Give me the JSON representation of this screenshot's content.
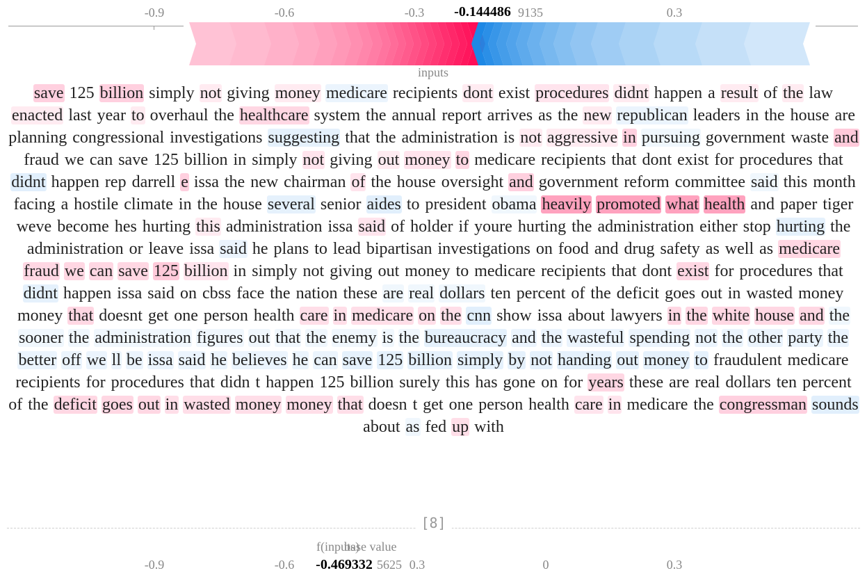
{
  "force_plot": {
    "ticks": [
      {
        "label": "-0.9"
      },
      {
        "label": "-0.6"
      },
      {
        "label": "-0.3"
      },
      {
        "label": "0.3"
      }
    ],
    "output_value": "-0.144486",
    "output_tail": "9135",
    "inputs_label": "inputs",
    "colors": {
      "positive": "#ff0d57",
      "negative": "#1e88e5"
    }
  },
  "tokens": [
    {
      "t": "save",
      "w": 0.25
    },
    {
      "t": "125",
      "w": 0
    },
    {
      "t": "billion",
      "w": 0.25
    },
    {
      "t": "simply",
      "w": 0
    },
    {
      "t": "not",
      "w": 0.05
    },
    {
      "t": "giving",
      "w": 0
    },
    {
      "t": "money",
      "w": 0.05
    },
    {
      "t": "medicare",
      "w": -0.1
    },
    {
      "t": "recipients",
      "w": 0
    },
    {
      "t": "dont",
      "w": 0.05
    },
    {
      "t": "exist",
      "w": 0
    },
    {
      "t": "procedures",
      "w": 0.1
    },
    {
      "t": "didnt",
      "w": 0.05
    },
    {
      "t": "happen",
      "w": 0
    },
    {
      "t": "a",
      "w": 0
    },
    {
      "t": "result",
      "w": 0.05
    },
    {
      "t": "of",
      "w": 0
    },
    {
      "t": "the",
      "w": 0.05
    },
    {
      "t": "law",
      "w": 0
    },
    {
      "t": "enacted",
      "w": 0.05
    },
    {
      "t": "last",
      "w": 0
    },
    {
      "t": "year",
      "w": 0
    },
    {
      "t": "to",
      "w": 0.05
    },
    {
      "t": "overhaul",
      "w": 0
    },
    {
      "t": "the",
      "w": 0
    },
    {
      "t": "healthcare",
      "w": 0.2
    },
    {
      "t": "system",
      "w": 0
    },
    {
      "t": "the",
      "w": 0
    },
    {
      "t": "annual",
      "w": 0
    },
    {
      "t": "report",
      "w": 0
    },
    {
      "t": "arrives",
      "w": 0
    },
    {
      "t": "as",
      "w": 0
    },
    {
      "t": "the",
      "w": 0
    },
    {
      "t": "new",
      "w": 0.05
    },
    {
      "t": "republican",
      "w": -0.1
    },
    {
      "t": "leaders",
      "w": 0
    },
    {
      "t": "in",
      "w": 0
    },
    {
      "t": "the",
      "w": 0
    },
    {
      "t": "house",
      "w": 0
    },
    {
      "t": "are",
      "w": 0
    },
    {
      "t": "planning",
      "w": 0
    },
    {
      "t": "congressional",
      "w": 0
    },
    {
      "t": "investigations",
      "w": 0
    },
    {
      "t": "suggesting",
      "w": -0.15
    },
    {
      "t": "that",
      "w": 0
    },
    {
      "t": "the",
      "w": 0
    },
    {
      "t": "administration",
      "w": 0
    },
    {
      "t": "is",
      "w": 0
    },
    {
      "t": "not",
      "w": 0.05
    },
    {
      "t": "aggressive",
      "w": 0.05
    },
    {
      "t": "in",
      "w": 0.25
    },
    {
      "t": "pursuing",
      "w": -0.05
    },
    {
      "t": "government",
      "w": 0
    },
    {
      "t": "waste",
      "w": 0
    },
    {
      "t": "and",
      "w": 0.3
    },
    {
      "t": "fraud",
      "w": 0
    },
    {
      "t": "we",
      "w": 0
    },
    {
      "t": "can",
      "w": 0
    },
    {
      "t": "save",
      "w": 0
    },
    {
      "t": "125",
      "w": 0
    },
    {
      "t": "billion",
      "w": 0
    },
    {
      "t": "in",
      "w": 0
    },
    {
      "t": "simply",
      "w": 0
    },
    {
      "t": "not",
      "w": 0.1
    },
    {
      "t": "giving",
      "w": 0
    },
    {
      "t": "out",
      "w": 0.05
    },
    {
      "t": "money",
      "w": 0.1
    },
    {
      "t": "to",
      "w": 0.2
    },
    {
      "t": "medicare",
      "w": 0
    },
    {
      "t": "recipients",
      "w": 0
    },
    {
      "t": "that",
      "w": 0
    },
    {
      "t": "dont",
      "w": 0
    },
    {
      "t": "exist",
      "w": 0
    },
    {
      "t": "for",
      "w": 0
    },
    {
      "t": "procedures",
      "w": 0
    },
    {
      "t": "that",
      "w": 0
    },
    {
      "t": "didnt",
      "w": -0.2
    },
    {
      "t": "happen",
      "w": 0
    },
    {
      "t": "rep",
      "w": 0
    },
    {
      "t": "darrell",
      "w": 0
    },
    {
      "t": "e",
      "w": 0.25
    },
    {
      "t": "issa",
      "w": 0
    },
    {
      "t": "the",
      "w": 0
    },
    {
      "t": "new",
      "w": 0
    },
    {
      "t": "chairman",
      "w": 0
    },
    {
      "t": "of",
      "w": 0.1
    },
    {
      "t": "the",
      "w": 0
    },
    {
      "t": "house",
      "w": 0
    },
    {
      "t": "oversight",
      "w": 0
    },
    {
      "t": "and",
      "w": 0.25
    },
    {
      "t": "government",
      "w": 0
    },
    {
      "t": "reform",
      "w": 0
    },
    {
      "t": "committee",
      "w": 0
    },
    {
      "t": "said",
      "w": -0.05
    },
    {
      "t": "this",
      "w": 0
    },
    {
      "t": "month",
      "w": 0
    },
    {
      "t": "facing",
      "w": 0
    },
    {
      "t": "a",
      "w": 0
    },
    {
      "t": "hostile",
      "w": 0
    },
    {
      "t": "climate",
      "w": 0
    },
    {
      "t": "in",
      "w": 0
    },
    {
      "t": "the",
      "w": 0
    },
    {
      "t": "house",
      "w": 0
    },
    {
      "t": "several",
      "w": -0.15
    },
    {
      "t": "senior",
      "w": 0
    },
    {
      "t": "aides",
      "w": -0.2
    },
    {
      "t": "to",
      "w": 0
    },
    {
      "t": "president",
      "w": 0
    },
    {
      "t": "obama",
      "w": -0.05
    },
    {
      "t": "heavily",
      "w": 0.6
    },
    {
      "t": "promoted",
      "w": 0.6
    },
    {
      "t": "what",
      "w": 0.6
    },
    {
      "t": "health",
      "w": 0.6
    },
    {
      "t": "and",
      "w": 0
    },
    {
      "t": "paper",
      "w": 0
    },
    {
      "t": "tiger",
      "w": 0
    },
    {
      "t": "weve",
      "w": 0
    },
    {
      "t": "become",
      "w": 0
    },
    {
      "t": "hes",
      "w": 0
    },
    {
      "t": "hurting",
      "w": 0
    },
    {
      "t": "this",
      "w": 0.05
    },
    {
      "t": "administration",
      "w": 0
    },
    {
      "t": "issa",
      "w": 0
    },
    {
      "t": "said",
      "w": 0.1
    },
    {
      "t": "of",
      "w": 0
    },
    {
      "t": "holder",
      "w": 0
    },
    {
      "t": "if",
      "w": 0
    },
    {
      "t": "youre",
      "w": 0
    },
    {
      "t": "hurting",
      "w": 0
    },
    {
      "t": "the",
      "w": 0
    },
    {
      "t": "administration",
      "w": 0
    },
    {
      "t": "either",
      "w": 0
    },
    {
      "t": "stop",
      "w": 0
    },
    {
      "t": "hurting",
      "w": -0.15
    },
    {
      "t": "the",
      "w": 0
    },
    {
      "t": "administration",
      "w": 0
    },
    {
      "t": "or",
      "w": 0
    },
    {
      "t": "leave",
      "w": 0
    },
    {
      "t": "issa",
      "w": 0
    },
    {
      "t": "said",
      "w": -0.1
    },
    {
      "t": "he",
      "w": 0
    },
    {
      "t": "plans",
      "w": 0
    },
    {
      "t": "to",
      "w": 0
    },
    {
      "t": "lead",
      "w": 0
    },
    {
      "t": "bipartisan",
      "w": 0
    },
    {
      "t": "investigations",
      "w": 0
    },
    {
      "t": "on",
      "w": 0
    },
    {
      "t": "food",
      "w": 0
    },
    {
      "t": "and",
      "w": 0
    },
    {
      "t": "drug",
      "w": 0
    },
    {
      "t": "safety",
      "w": 0
    },
    {
      "t": "as",
      "w": 0
    },
    {
      "t": "well",
      "w": 0
    },
    {
      "t": "as",
      "w": 0
    },
    {
      "t": "medicare",
      "w": 0.2
    },
    {
      "t": "fraud",
      "w": 0.2
    },
    {
      "t": "we",
      "w": 0.2
    },
    {
      "t": "can",
      "w": 0.2
    },
    {
      "t": "save",
      "w": 0.2
    },
    {
      "t": "125",
      "w": 0.3
    },
    {
      "t": "billion",
      "w": 0.1
    },
    {
      "t": "in",
      "w": 0
    },
    {
      "t": "simply",
      "w": 0
    },
    {
      "t": "not",
      "w": 0
    },
    {
      "t": "giving",
      "w": 0
    },
    {
      "t": "out",
      "w": 0
    },
    {
      "t": "money",
      "w": 0
    },
    {
      "t": "to",
      "w": 0
    },
    {
      "t": "medicare",
      "w": 0
    },
    {
      "t": "recipients",
      "w": 0
    },
    {
      "t": "that",
      "w": 0
    },
    {
      "t": "dont",
      "w": 0
    },
    {
      "t": "exist",
      "w": 0.2
    },
    {
      "t": "for",
      "w": 0
    },
    {
      "t": "procedures",
      "w": 0
    },
    {
      "t": "that",
      "w": 0
    },
    {
      "t": "didnt",
      "w": -0.15
    },
    {
      "t": "happen",
      "w": 0
    },
    {
      "t": "issa",
      "w": 0
    },
    {
      "t": "said",
      "w": 0
    },
    {
      "t": "on",
      "w": 0
    },
    {
      "t": "cbss",
      "w": 0
    },
    {
      "t": "face",
      "w": 0
    },
    {
      "t": "the",
      "w": 0
    },
    {
      "t": "nation",
      "w": 0
    },
    {
      "t": "these",
      "w": 0
    },
    {
      "t": "are",
      "w": -0.05
    },
    {
      "t": "real",
      "w": -0.05
    },
    {
      "t": "dollars",
      "w": -0.05
    },
    {
      "t": "ten",
      "w": 0
    },
    {
      "t": "percent",
      "w": 0
    },
    {
      "t": "of",
      "w": 0
    },
    {
      "t": "the",
      "w": 0
    },
    {
      "t": "deficit",
      "w": 0
    },
    {
      "t": "goes",
      "w": 0
    },
    {
      "t": "out",
      "w": 0
    },
    {
      "t": "in",
      "w": 0
    },
    {
      "t": "wasted",
      "w": 0
    },
    {
      "t": "money",
      "w": 0
    },
    {
      "t": "money",
      "w": 0
    },
    {
      "t": "that",
      "w": 0.2
    },
    {
      "t": "doesnt",
      "w": 0
    },
    {
      "t": "get",
      "w": 0
    },
    {
      "t": "one",
      "w": 0
    },
    {
      "t": "person",
      "w": 0
    },
    {
      "t": "health",
      "w": 0
    },
    {
      "t": "care",
      "w": 0.15
    },
    {
      "t": "in",
      "w": 0.15
    },
    {
      "t": "medicare",
      "w": 0.15
    },
    {
      "t": "on",
      "w": 0.15
    },
    {
      "t": "the",
      "w": 0.15
    },
    {
      "t": "cnn",
      "w": -0.2
    },
    {
      "t": "show",
      "w": 0
    },
    {
      "t": "issa",
      "w": 0
    },
    {
      "t": "about",
      "w": 0
    },
    {
      "t": "lawyers",
      "w": 0
    },
    {
      "t": "in",
      "w": 0.2
    },
    {
      "t": "the",
      "w": 0.2
    },
    {
      "t": "white",
      "w": 0.2
    },
    {
      "t": "house",
      "w": 0.2
    },
    {
      "t": "and",
      "w": 0.2
    },
    {
      "t": "the",
      "w": -0.05
    },
    {
      "t": "sooner",
      "w": -0.05
    },
    {
      "t": "the",
      "w": -0.05
    },
    {
      "t": "administration",
      "w": -0.05
    },
    {
      "t": "figures",
      "w": -0.05
    },
    {
      "t": "out",
      "w": -0.05
    },
    {
      "t": "that",
      "w": -0.05
    },
    {
      "t": "the",
      "w": -0.05
    },
    {
      "t": "enemy",
      "w": -0.05
    },
    {
      "t": "is",
      "w": -0.05
    },
    {
      "t": "the",
      "w": -0.05
    },
    {
      "t": "bureaucracy",
      "w": -0.15
    },
    {
      "t": "and",
      "w": -0.1
    },
    {
      "t": "the",
      "w": -0.1
    },
    {
      "t": "wasteful",
      "w": -0.1
    },
    {
      "t": "spending",
      "w": -0.1
    },
    {
      "t": "not",
      "w": -0.1
    },
    {
      "t": "the",
      "w": -0.1
    },
    {
      "t": "other",
      "w": -0.1
    },
    {
      "t": "party",
      "w": -0.1
    },
    {
      "t": "the",
      "w": -0.1
    },
    {
      "t": "better",
      "w": -0.1
    },
    {
      "t": "off",
      "w": -0.1
    },
    {
      "t": "we",
      "w": -0.1
    },
    {
      "t": "ll",
      "w": -0.1
    },
    {
      "t": "be",
      "w": -0.1
    },
    {
      "t": "issa",
      "w": -0.1
    },
    {
      "t": "said",
      "w": -0.1
    },
    {
      "t": "he",
      "w": -0.1
    },
    {
      "t": "believes",
      "w": -0.1
    },
    {
      "t": "he",
      "w": -0.1
    },
    {
      "t": "can",
      "w": -0.1
    },
    {
      "t": "save",
      "w": -0.15
    },
    {
      "t": "125",
      "w": -0.15
    },
    {
      "t": "billion",
      "w": -0.15
    },
    {
      "t": "simply",
      "w": -0.15
    },
    {
      "t": "by",
      "w": -0.15
    },
    {
      "t": "not",
      "w": -0.15
    },
    {
      "t": "handing",
      "w": -0.15
    },
    {
      "t": "out",
      "w": -0.15
    },
    {
      "t": "money",
      "w": -0.15
    },
    {
      "t": "to",
      "w": -0.15
    },
    {
      "t": "fraudulent",
      "w": 0
    },
    {
      "t": "medicare",
      "w": 0
    },
    {
      "t": "recipients",
      "w": 0
    },
    {
      "t": "for",
      "w": 0
    },
    {
      "t": "procedures",
      "w": 0
    },
    {
      "t": "that",
      "w": 0
    },
    {
      "t": "didn",
      "w": 0
    },
    {
      "t": "t",
      "w": 0
    },
    {
      "t": "happen",
      "w": 0
    },
    {
      "t": "125",
      "w": 0
    },
    {
      "t": "billion",
      "w": 0
    },
    {
      "t": "surely",
      "w": 0
    },
    {
      "t": "this",
      "w": 0
    },
    {
      "t": "has",
      "w": 0
    },
    {
      "t": "gone",
      "w": 0
    },
    {
      "t": "on",
      "w": 0
    },
    {
      "t": "for",
      "w": 0
    },
    {
      "t": "years",
      "w": 0.2
    },
    {
      "t": "these",
      "w": 0
    },
    {
      "t": "are",
      "w": 0
    },
    {
      "t": "real",
      "w": 0
    },
    {
      "t": "dollars",
      "w": 0
    },
    {
      "t": "ten",
      "w": 0
    },
    {
      "t": "percent",
      "w": 0
    },
    {
      "t": "of",
      "w": 0
    },
    {
      "t": "the",
      "w": 0
    },
    {
      "t": "deficit",
      "w": 0.2
    },
    {
      "t": "goes",
      "w": 0.2
    },
    {
      "t": "out",
      "w": 0.2
    },
    {
      "t": "in",
      "w": 0.15
    },
    {
      "t": "wasted",
      "w": 0.15
    },
    {
      "t": "money",
      "w": 0.15
    },
    {
      "t": "money",
      "w": 0.15
    },
    {
      "t": "that",
      "w": 0.15
    },
    {
      "t": "doesn",
      "w": 0
    },
    {
      "t": "t",
      "w": 0
    },
    {
      "t": "get",
      "w": 0
    },
    {
      "t": "one",
      "w": 0
    },
    {
      "t": "person",
      "w": 0
    },
    {
      "t": "health",
      "w": 0
    },
    {
      "t": "care",
      "w": 0.1
    },
    {
      "t": "in",
      "w": 0.1
    },
    {
      "t": "medicare",
      "w": 0
    },
    {
      "t": "the",
      "w": 0
    },
    {
      "t": "congressman",
      "w": 0.25
    },
    {
      "t": "sounds",
      "w": -0.2
    },
    {
      "t": "about",
      "w": 0
    },
    {
      "t": "as",
      "w": -0.05
    },
    {
      "t": "fed",
      "w": 0
    },
    {
      "t": "up",
      "w": 0.15
    },
    {
      "t": "with",
      "w": 0
    }
  ],
  "separator": {
    "index_label": "[8]"
  },
  "second_plot": {
    "label_f": "f(inputs)",
    "label_base": "base value",
    "ticks": [
      {
        "label": "-0.9"
      },
      {
        "label": "-0.6"
      },
      {
        "label": "0.3"
      },
      {
        "label": "0"
      },
      {
        "label": "0.3"
      }
    ],
    "output_value": "-0.469332",
    "output_tail": "5625"
  }
}
